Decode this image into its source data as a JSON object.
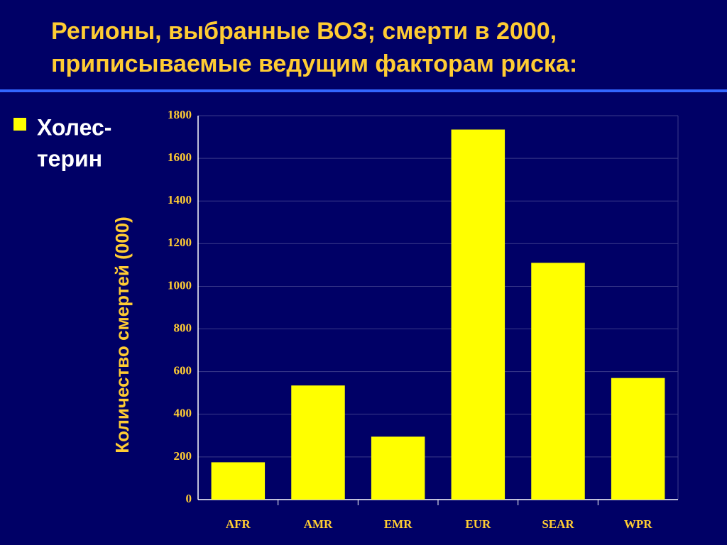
{
  "slide": {
    "title": [
      "Регионы, выбранные ВОЗ; смерти в 2000,",
      "приписываемые ведущим факторам риска:"
    ],
    "bullet": [
      "Холес-",
      "терин"
    ]
  },
  "chart_data": {
    "type": "bar",
    "ylabel": "Количество смертей (000)",
    "categories": [
      "AFR",
      "AMR",
      "EMR",
      "EUR",
      "SEAR",
      "WPR"
    ],
    "values": [
      175,
      535,
      295,
      1735,
      1110,
      570
    ],
    "color": "#ffff00",
    "ylim": [
      0,
      1800
    ],
    "yticks": [
      0,
      200,
      400,
      600,
      800,
      1000,
      1200,
      1400,
      1600,
      1800
    ],
    "grid": true
  }
}
